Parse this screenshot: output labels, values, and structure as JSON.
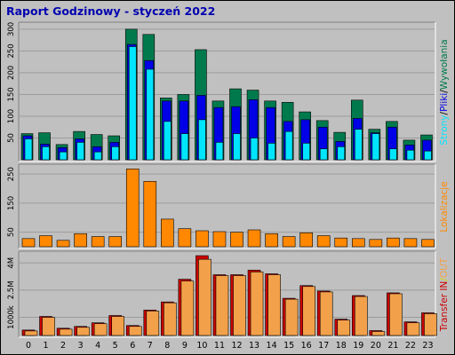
{
  "title": "Raport Godzinowy -   styczeń 2022",
  "colors": {
    "background": "#c0c0c0",
    "panel": "#c0c0c0",
    "grid": "#9c9c9c",
    "title": "#0000b0",
    "hits": "#007a4d",
    "files": "#0000e6",
    "pages": "#00e5ff",
    "sites": "#ff8800",
    "kbytes_in": "#cc0000",
    "kbytes_out": "#f2a14a",
    "legend_slash": "#000000",
    "legend_in_out_sep": "#d8d800"
  },
  "legend": {
    "requests": [
      {
        "text": "Strony",
        "color_key": "pages"
      },
      {
        "text": "/",
        "color_key": "legend_slash"
      },
      {
        "text": "Pliki",
        "color_key": "files"
      },
      {
        "text": "/",
        "color_key": "legend_slash"
      },
      {
        "text": "Wywołania",
        "color_key": "hits"
      }
    ],
    "sites": [
      {
        "text": "Lokalizacje",
        "color_key": "sites"
      }
    ],
    "traffic": [
      {
        "text": "Transfer",
        "color_key": "kbytes_in"
      },
      {
        "text": " IN",
        "color_key": "kbytes_in"
      },
      {
        "text": "/",
        "color_key": "legend_in_out_sep"
      },
      {
        "text": "OUT",
        "color_key": "kbytes_out"
      }
    ]
  },
  "chart_data": [
    {
      "type": "bar",
      "panel": "requests",
      "categories": [
        "0",
        "1",
        "2",
        "3",
        "4",
        "5",
        "6",
        "7",
        "8",
        "9",
        "10",
        "11",
        "12",
        "13",
        "14",
        "15",
        "16",
        "17",
        "18",
        "19",
        "20",
        "21",
        "22",
        "23"
      ],
      "ylim": [
        0,
        310
      ],
      "yticks": [
        "50",
        "100",
        "150",
        "200",
        "250",
        "300"
      ],
      "ytick_values": [
        50,
        100,
        150,
        200,
        250,
        300
      ],
      "series": [
        {
          "name": "Wywołania",
          "color_key": "hits",
          "values": [
            60,
            62,
            35,
            65,
            58,
            55,
            300,
            288,
            142,
            150,
            253,
            135,
            163,
            160,
            135,
            132,
            110,
            90,
            63,
            137,
            70,
            88,
            45,
            57
          ]
        },
        {
          "name": "Pliki",
          "color_key": "files",
          "values": [
            55,
            36,
            28,
            48,
            30,
            40,
            265,
            228,
            135,
            135,
            148,
            120,
            122,
            138,
            120,
            88,
            92,
            75,
            42,
            95,
            62,
            75,
            34,
            45
          ]
        },
        {
          "name": "Strony",
          "color_key": "pages",
          "values": [
            48,
            30,
            18,
            40,
            18,
            30,
            260,
            208,
            88,
            60,
            92,
            40,
            60,
            50,
            38,
            65,
            38,
            25,
            30,
            70,
            60,
            25,
            22,
            20
          ]
        }
      ]
    },
    {
      "type": "bar",
      "panel": "sites",
      "categories": [
        "0",
        "1",
        "2",
        "3",
        "4",
        "5",
        "6",
        "7",
        "8",
        "9",
        "10",
        "11",
        "12",
        "13",
        "14",
        "15",
        "16",
        "17",
        "18",
        "19",
        "20",
        "21",
        "22",
        "23"
      ],
      "ylim": [
        0,
        275
      ],
      "yticks": [
        "50",
        "150",
        "250"
      ],
      "ytick_values": [
        50,
        150,
        250
      ],
      "series": [
        {
          "name": "Lokalizacje",
          "color_key": "sites",
          "values": [
            28,
            38,
            22,
            45,
            35,
            35,
            268,
            225,
            95,
            62,
            55,
            52,
            50,
            58,
            45,
            35,
            48,
            38,
            30,
            28,
            25,
            30,
            28,
            25
          ]
        }
      ]
    },
    {
      "type": "bar",
      "panel": "traffic",
      "categories": [
        "0",
        "1",
        "2",
        "3",
        "4",
        "5",
        "6",
        "7",
        "8",
        "9",
        "10",
        "11",
        "12",
        "13",
        "14",
        "15",
        "16",
        "17",
        "18",
        "19",
        "20",
        "21",
        "22",
        "23"
      ],
      "ylim": [
        0,
        4500
      ],
      "yticks": [
        "1000k",
        "2.5M",
        "4M"
      ],
      "ytick_values": [
        1000,
        2500,
        4000
      ],
      "series": [
        {
          "name": "IN",
          "color_key": "kbytes_in",
          "values": [
            300,
            1050,
            400,
            500,
            700,
            1100,
            550,
            1400,
            1850,
            3100,
            4400,
            3350,
            3350,
            3600,
            3400,
            2050,
            2750,
            2450,
            900,
            2200,
            270,
            2350,
            750,
            1250
          ]
        },
        {
          "name": "OUT",
          "color_key": "kbytes_out",
          "values": [
            250,
            1000,
            350,
            450,
            650,
            1050,
            500,
            1350,
            1800,
            3000,
            4200,
            3300,
            3300,
            3500,
            3350,
            2000,
            2700,
            2400,
            850,
            2150,
            220,
            2300,
            700,
            1200
          ]
        }
      ]
    }
  ]
}
